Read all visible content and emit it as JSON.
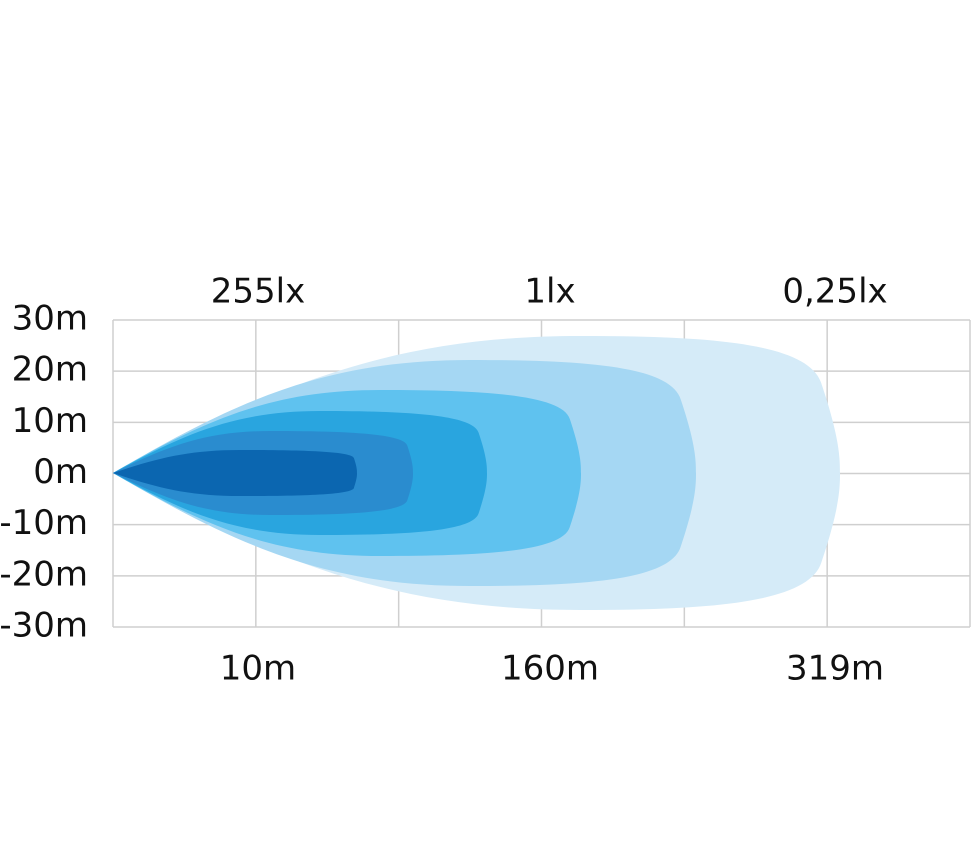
{
  "y_axis": {
    "labels": [
      "30m",
      "20m",
      "10m",
      "0m",
      "-10m",
      "-20m",
      "-30m"
    ]
  },
  "top_labels": [
    "255lx",
    "1lx",
    "0,25lx"
  ],
  "bottom_labels": [
    "10m",
    "160m",
    "319m"
  ]
}
